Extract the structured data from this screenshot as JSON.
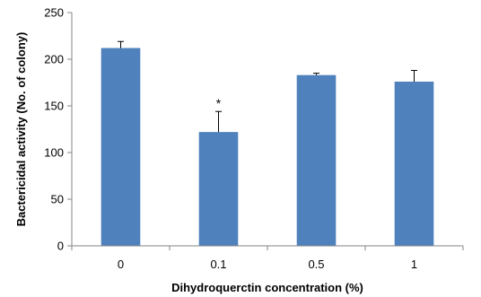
{
  "chart_data": {
    "type": "bar",
    "title": "",
    "xlabel": "Dihydroquerctin concentration (%)",
    "ylabel": "Bactericidal activity (No. of colony)",
    "ylim": [
      0,
      250
    ],
    "yticks": [
      0,
      50,
      100,
      150,
      200,
      250
    ],
    "grid": false,
    "legend": "none",
    "categories": [
      "0",
      "0.1",
      "0.5",
      "1"
    ],
    "values": [
      212,
      122,
      183,
      176
    ],
    "error_plus": [
      7,
      22,
      2,
      12
    ],
    "annotations": [
      "",
      "*",
      "",
      ""
    ],
    "bar_color": "#4F81BD"
  }
}
